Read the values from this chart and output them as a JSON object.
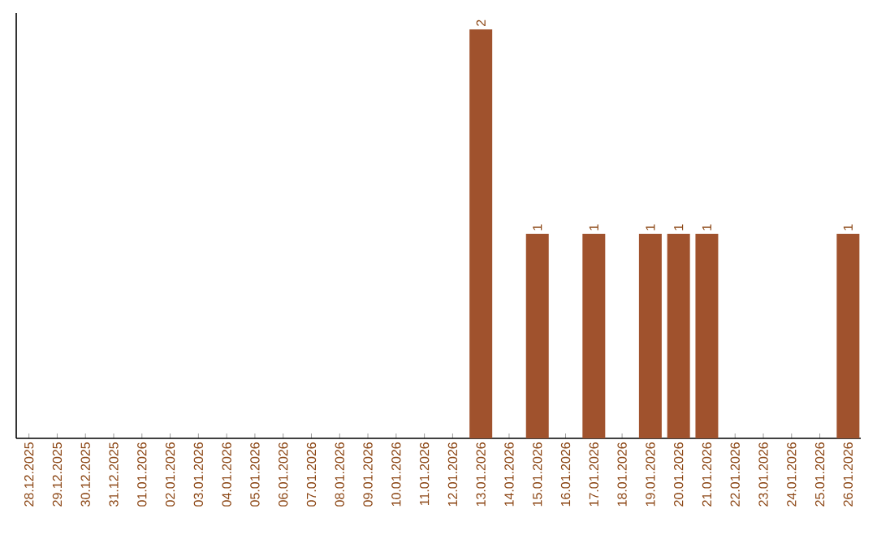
{
  "chart_data": {
    "type": "bar",
    "categories": [
      "28.12.2025",
      "29.12.2025",
      "30.12.2025",
      "31.12.2025",
      "01.01.2026",
      "02.01.2026",
      "03.01.2026",
      "04.01.2026",
      "05.01.2026",
      "06.01.2026",
      "07.01.2026",
      "08.01.2026",
      "09.01.2026",
      "10.01.2026",
      "11.01.2026",
      "12.01.2026",
      "13.01.2026",
      "14.01.2026",
      "15.01.2026",
      "16.01.2026",
      "17.01.2026",
      "18.01.2026",
      "19.01.2026",
      "20.01.2026",
      "21.01.2026",
      "22.01.2026",
      "23.01.2026",
      "24.01.2026",
      "25.01.2026",
      "26.01.2026"
    ],
    "values": [
      null,
      null,
      null,
      null,
      null,
      null,
      null,
      null,
      null,
      null,
      null,
      null,
      null,
      null,
      null,
      null,
      2,
      null,
      1,
      null,
      1,
      null,
      1,
      1,
      1,
      null,
      null,
      null,
      null,
      1
    ],
    "data_labels": true,
    "color": "#a0522d",
    "tick_labels": "x"
  }
}
